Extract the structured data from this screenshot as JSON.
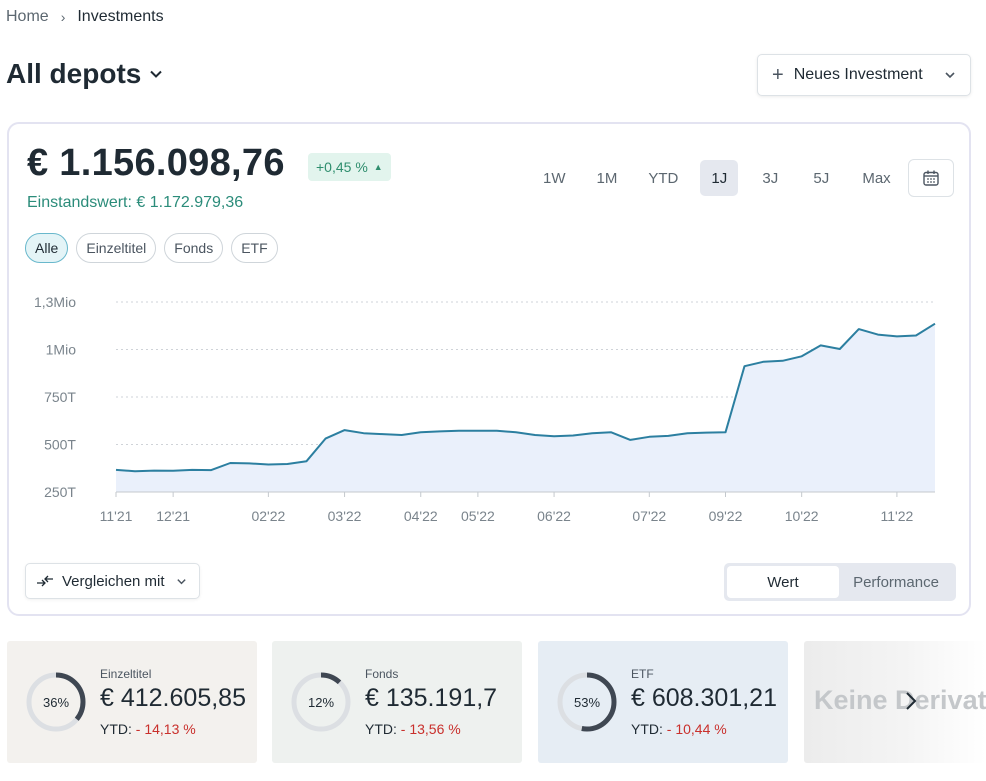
{
  "breadcrumb": {
    "home": "Home",
    "current": "Investments"
  },
  "page": {
    "title": "All depots"
  },
  "new_investment_button": {
    "label": "Neues Investment",
    "plus": "+"
  },
  "summary": {
    "total_value": "€ 1.156.098,76",
    "change": "+0,45 %",
    "change_arrow": "▲",
    "cost_basis": "Einstandswert: € 1.172.979,36"
  },
  "period_tabs": [
    {
      "label": "1W",
      "active": false
    },
    {
      "label": "1M",
      "active": false
    },
    {
      "label": "YTD",
      "active": false
    },
    {
      "label": "1J",
      "active": true
    },
    {
      "label": "3J",
      "active": false
    },
    {
      "label": "5J",
      "active": false
    },
    {
      "label": "Max",
      "active": false
    }
  ],
  "filters": [
    {
      "label": "Alle",
      "active": true
    },
    {
      "label": "Einzeltitel",
      "active": false
    },
    {
      "label": "Fonds",
      "active": false
    },
    {
      "label": "ETF",
      "active": false
    }
  ],
  "compare_button": {
    "label": "Vergleichen mit"
  },
  "view_toggle": {
    "active": "Wert",
    "inactive": "Performance"
  },
  "colors": {
    "line": "#2c7fa0",
    "fill": "#eaf0fb",
    "accent_teal": "#2b8c7a",
    "negative": "#c9302c",
    "donut_arc": "#3f4752",
    "donut_track": "#dcdfe3"
  },
  "chart_data": {
    "type": "area",
    "x_ticks": [
      "11'21",
      "12'21",
      "02'22",
      "03'22",
      "04'22",
      "05'22",
      "06'22",
      "07'22",
      "09'22",
      "10'22",
      "11'22"
    ],
    "y_ticks": [
      "1,3Mio",
      "1Mio",
      "750T",
      "500T",
      "250T"
    ],
    "ylim": [
      250000,
      1300000
    ],
    "grid": true,
    "x": [
      "11'21",
      "",
      "",
      "12'21",
      "",
      "",
      "",
      "",
      "02'22",
      "",
      "",
      "",
      "03'22",
      "",
      "",
      "",
      "04'22",
      "",
      "",
      "05'22",
      "",
      "",
      "",
      "06'22",
      "",
      "",
      "",
      "",
      "07'22",
      "",
      "",
      "",
      "09'22",
      "",
      "",
      "",
      "10'22",
      "",
      "",
      "",
      "",
      "11'22",
      "",
      ""
    ],
    "values": [
      372000,
      365000,
      368000,
      367000,
      372000,
      371000,
      410000,
      408000,
      402000,
      405000,
      420000,
      545000,
      592000,
      575000,
      570000,
      565000,
      580000,
      585000,
      588000,
      588000,
      589000,
      580000,
      565000,
      558000,
      562000,
      575000,
      580000,
      538000,
      555000,
      560000,
      575000,
      578000,
      580000,
      945000,
      970000,
      975000,
      1000000,
      1060000,
      1040000,
      1150000,
      1120000,
      1110000,
      1115000,
      1180000
    ]
  },
  "asset_cards": [
    {
      "percent_label": "36%",
      "percent": 36,
      "label": "Einzeltitel",
      "value": "€ 412.605,85",
      "ytd_prefix": "YTD:",
      "ytd_value": "- 14,13 %"
    },
    {
      "percent_label": "12%",
      "percent": 12,
      "label": "Fonds",
      "value": "€ 135.191,7",
      "ytd_prefix": "YTD:",
      "ytd_value": "- 13,56 %"
    },
    {
      "percent_label": "53%",
      "percent": 53,
      "label": "ETF",
      "value": "€ 608.301,21",
      "ytd_prefix": "YTD:",
      "ytd_value": "- 10,44 %"
    }
  ],
  "derivatives_card": {
    "label": "Keine Derivate"
  }
}
